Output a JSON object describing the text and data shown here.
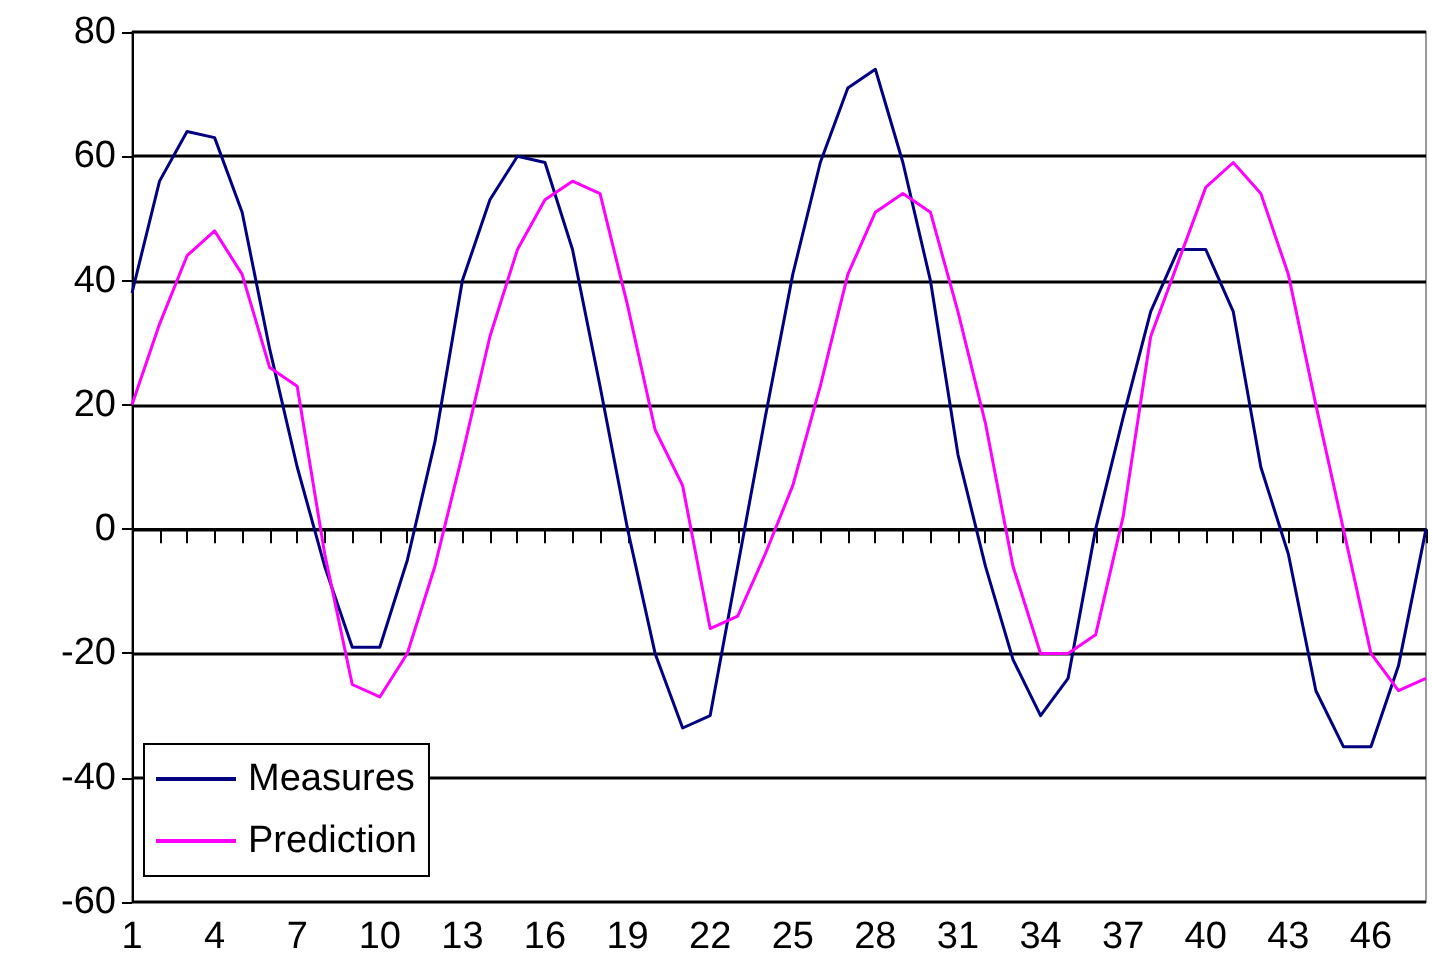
{
  "chart_data": {
    "type": "line",
    "categories": [
      "1",
      null,
      null,
      "4",
      null,
      null,
      "7",
      null,
      null,
      "10",
      null,
      null,
      "13",
      null,
      null,
      "16",
      null,
      null,
      "19",
      null,
      null,
      "22",
      null,
      null,
      "25",
      null,
      null,
      "28",
      null,
      null,
      "31",
      null,
      null,
      "34",
      null,
      null,
      "37",
      null,
      null,
      "40",
      null,
      null,
      "43",
      null,
      null,
      "46",
      null,
      null
    ],
    "series": [
      {
        "name": "Measures",
        "color": "#000080",
        "values": [
          38,
          56,
          64,
          63,
          51,
          29,
          10,
          -6,
          -19,
          -19,
          -5,
          14,
          40,
          53,
          60,
          59,
          45,
          23,
          0,
          -20,
          -32,
          -30,
          -6,
          18,
          41,
          59,
          71,
          74,
          59,
          40,
          12,
          -6,
          -21,
          -30,
          -24,
          0,
          18,
          35,
          45,
          45,
          35,
          10,
          -4,
          -26,
          -35,
          -35,
          -22,
          0
        ]
      },
      {
        "name": "Prediction",
        "color": "#ff00ff",
        "values": [
          20,
          33,
          44,
          48,
          41,
          26,
          23,
          -4,
          -25,
          -27,
          -20,
          -6,
          12,
          31,
          45,
          53,
          56,
          54,
          36,
          16,
          7,
          -16,
          -14,
          -4,
          7,
          23,
          41,
          51,
          54,
          51,
          35,
          17,
          -6,
          -20,
          -20,
          -17,
          2,
          31,
          43,
          55,
          59,
          54,
          41,
          20,
          0,
          -20,
          -26,
          -24
        ]
      }
    ],
    "ylim": [
      -60,
      80
    ],
    "yticks": [
      -60,
      -40,
      -20,
      0,
      20,
      40,
      60,
      80
    ],
    "grid": "y",
    "legend": "bottom left",
    "marker": "none",
    "line_style": "solid"
  }
}
